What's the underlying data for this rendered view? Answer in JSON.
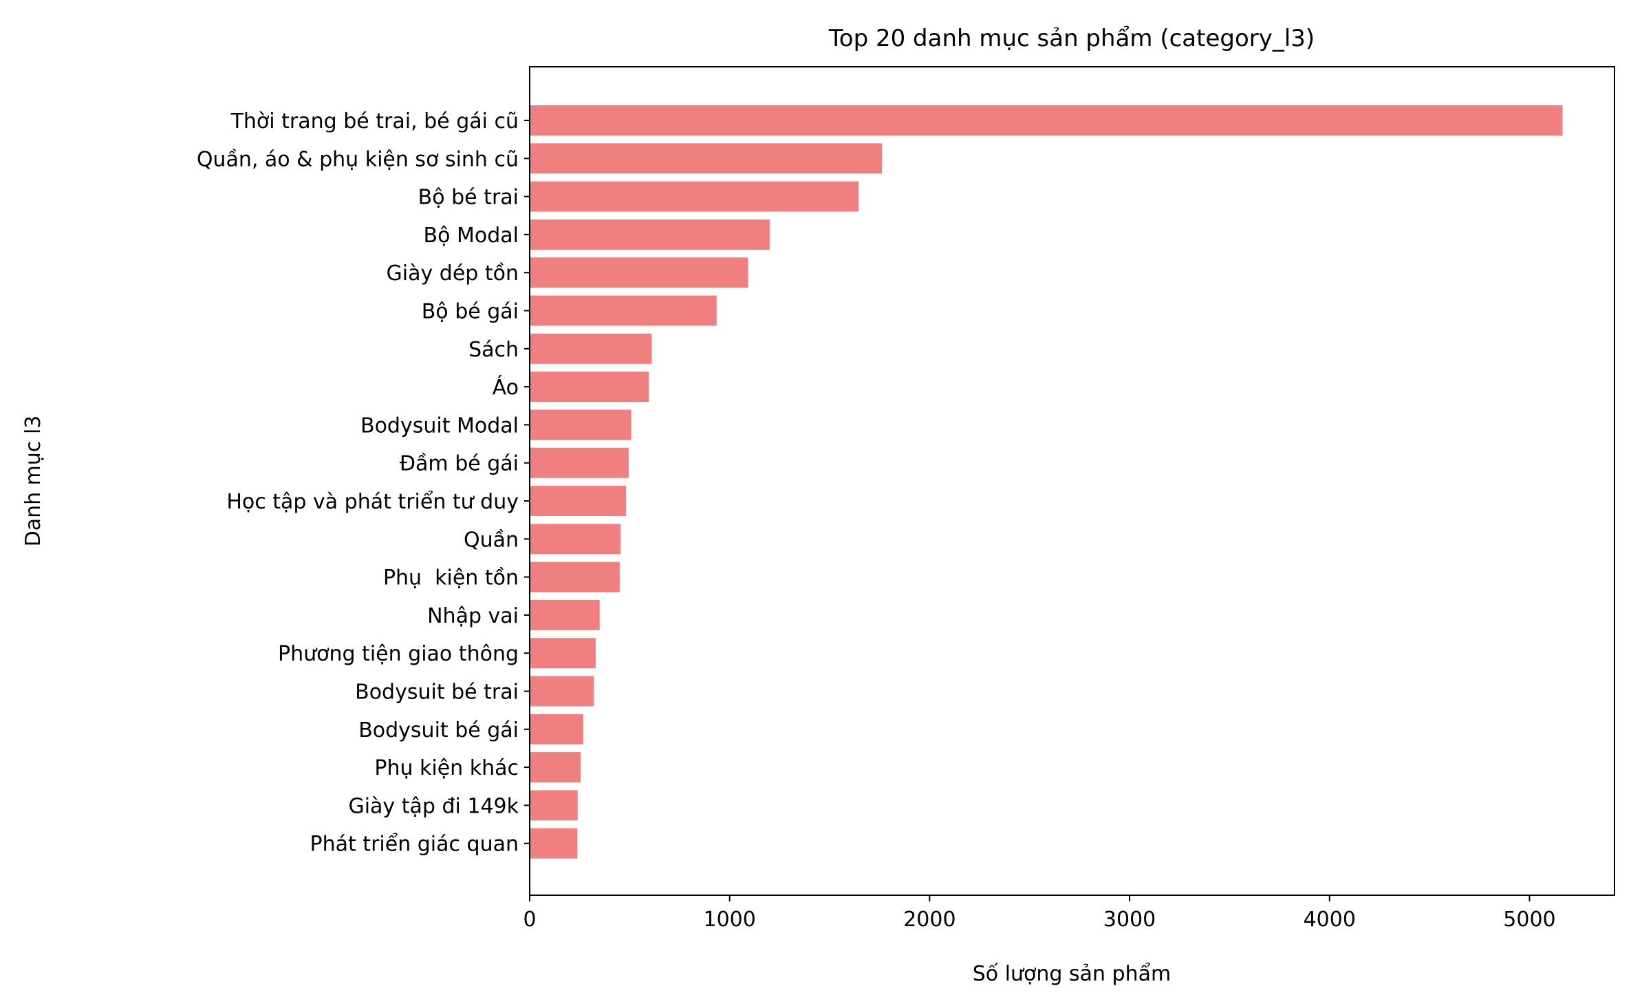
{
  "chart_data": {
    "type": "bar",
    "orientation": "horizontal",
    "title": "Top 20 danh mục sản phẩm (category_l3)",
    "xlabel": "Số lượng sản phẩm",
    "ylabel": "Danh mục l3",
    "xlim": [
      0,
      5425
    ],
    "xticks": [
      0,
      1000,
      2000,
      3000,
      4000,
      5000
    ],
    "grid": false,
    "bar_color": "#F08080",
    "categories": [
      "Thời trang bé trai, bé gái cũ",
      "Quần, áo & phụ kiện sơ sinh cũ",
      "Bộ bé trai",
      "Bộ Modal",
      "Giày dép tồn",
      "Bộ bé gái",
      "Sách",
      "Áo",
      "Bodysuit Modal",
      "Đầm bé gái",
      "Học tập và phát triển tư duy",
      "Quần",
      "Phụ  kiện tồn",
      "Nhập vai",
      "Phương tiện giao thông",
      "Bodysuit bé trai",
      "Bodysuit bé gái",
      "Phụ kiện khác",
      "Giày tập đi 149k",
      "Phát triển giác quan"
    ],
    "values": [
      5165,
      1762,
      1645,
      1200,
      1092,
      935,
      610,
      595,
      508,
      495,
      482,
      455,
      450,
      350,
      330,
      320,
      268,
      255,
      240,
      238
    ]
  }
}
